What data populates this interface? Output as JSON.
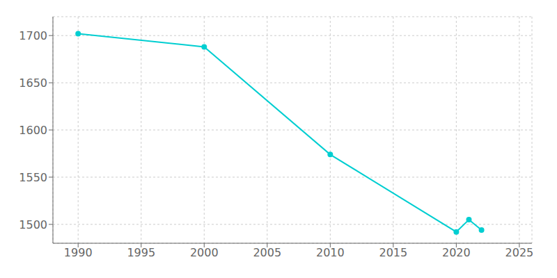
{
  "chart_data": {
    "type": "line",
    "x": [
      1990,
      2000,
      2010,
      2020,
      2021,
      2022
    ],
    "values": [
      1702,
      1688,
      1574,
      1492,
      1505,
      1494
    ],
    "color": "#00CED1",
    "marker": "circle",
    "xlim": [
      1988,
      2026
    ],
    "ylim": [
      1480,
      1720
    ],
    "xticks": [
      1990,
      1995,
      2000,
      2005,
      2010,
      2015,
      2020,
      2025
    ],
    "yticks": [
      1500,
      1550,
      1600,
      1650,
      1700
    ],
    "grid": true
  }
}
